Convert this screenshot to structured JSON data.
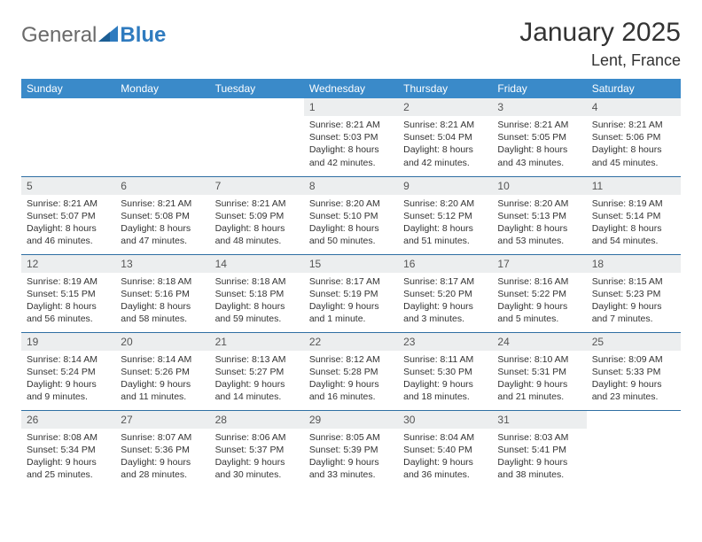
{
  "logo": {
    "text1": "General",
    "text2": "Blue"
  },
  "title": "January 2025",
  "location": "Lent, France",
  "colors": {
    "header_bg": "#3a8ac9",
    "header_text": "#ffffff",
    "daynum_bg": "#eceeef",
    "row_border": "#2f6fa3",
    "text": "#333333",
    "logo_blue": "#2f7bbf",
    "logo_gray": "#6a6a6a",
    "background": "#ffffff"
  },
  "weekdays": [
    "Sunday",
    "Monday",
    "Tuesday",
    "Wednesday",
    "Thursday",
    "Friday",
    "Saturday"
  ],
  "weeks": [
    [
      {
        "n": "",
        "empty": true
      },
      {
        "n": "",
        "empty": true
      },
      {
        "n": "",
        "empty": true
      },
      {
        "n": "1",
        "sunrise": "8:21 AM",
        "sunset": "5:03 PM",
        "dl1": "8 hours",
        "dl2": "42 minutes"
      },
      {
        "n": "2",
        "sunrise": "8:21 AM",
        "sunset": "5:04 PM",
        "dl1": "8 hours",
        "dl2": "42 minutes"
      },
      {
        "n": "3",
        "sunrise": "8:21 AM",
        "sunset": "5:05 PM",
        "dl1": "8 hours",
        "dl2": "43 minutes"
      },
      {
        "n": "4",
        "sunrise": "8:21 AM",
        "sunset": "5:06 PM",
        "dl1": "8 hours",
        "dl2": "45 minutes"
      }
    ],
    [
      {
        "n": "5",
        "sunrise": "8:21 AM",
        "sunset": "5:07 PM",
        "dl1": "8 hours",
        "dl2": "46 minutes"
      },
      {
        "n": "6",
        "sunrise": "8:21 AM",
        "sunset": "5:08 PM",
        "dl1": "8 hours",
        "dl2": "47 minutes"
      },
      {
        "n": "7",
        "sunrise": "8:21 AM",
        "sunset": "5:09 PM",
        "dl1": "8 hours",
        "dl2": "48 minutes"
      },
      {
        "n": "8",
        "sunrise": "8:20 AM",
        "sunset": "5:10 PM",
        "dl1": "8 hours",
        "dl2": "50 minutes"
      },
      {
        "n": "9",
        "sunrise": "8:20 AM",
        "sunset": "5:12 PM",
        "dl1": "8 hours",
        "dl2": "51 minutes"
      },
      {
        "n": "10",
        "sunrise": "8:20 AM",
        "sunset": "5:13 PM",
        "dl1": "8 hours",
        "dl2": "53 minutes"
      },
      {
        "n": "11",
        "sunrise": "8:19 AM",
        "sunset": "5:14 PM",
        "dl1": "8 hours",
        "dl2": "54 minutes"
      }
    ],
    [
      {
        "n": "12",
        "sunrise": "8:19 AM",
        "sunset": "5:15 PM",
        "dl1": "8 hours",
        "dl2": "56 minutes"
      },
      {
        "n": "13",
        "sunrise": "8:18 AM",
        "sunset": "5:16 PM",
        "dl1": "8 hours",
        "dl2": "58 minutes"
      },
      {
        "n": "14",
        "sunrise": "8:18 AM",
        "sunset": "5:18 PM",
        "dl1": "8 hours",
        "dl2": "59 minutes"
      },
      {
        "n": "15",
        "sunrise": "8:17 AM",
        "sunset": "5:19 PM",
        "dl1": "9 hours",
        "dl2": "1 minute"
      },
      {
        "n": "16",
        "sunrise": "8:17 AM",
        "sunset": "5:20 PM",
        "dl1": "9 hours",
        "dl2": "3 minutes"
      },
      {
        "n": "17",
        "sunrise": "8:16 AM",
        "sunset": "5:22 PM",
        "dl1": "9 hours",
        "dl2": "5 minutes"
      },
      {
        "n": "18",
        "sunrise": "8:15 AM",
        "sunset": "5:23 PM",
        "dl1": "9 hours",
        "dl2": "7 minutes"
      }
    ],
    [
      {
        "n": "19",
        "sunrise": "8:14 AM",
        "sunset": "5:24 PM",
        "dl1": "9 hours",
        "dl2": "9 minutes"
      },
      {
        "n": "20",
        "sunrise": "8:14 AM",
        "sunset": "5:26 PM",
        "dl1": "9 hours",
        "dl2": "11 minutes"
      },
      {
        "n": "21",
        "sunrise": "8:13 AM",
        "sunset": "5:27 PM",
        "dl1": "9 hours",
        "dl2": "14 minutes"
      },
      {
        "n": "22",
        "sunrise": "8:12 AM",
        "sunset": "5:28 PM",
        "dl1": "9 hours",
        "dl2": "16 minutes"
      },
      {
        "n": "23",
        "sunrise": "8:11 AM",
        "sunset": "5:30 PM",
        "dl1": "9 hours",
        "dl2": "18 minutes"
      },
      {
        "n": "24",
        "sunrise": "8:10 AM",
        "sunset": "5:31 PM",
        "dl1": "9 hours",
        "dl2": "21 minutes"
      },
      {
        "n": "25",
        "sunrise": "8:09 AM",
        "sunset": "5:33 PM",
        "dl1": "9 hours",
        "dl2": "23 minutes"
      }
    ],
    [
      {
        "n": "26",
        "sunrise": "8:08 AM",
        "sunset": "5:34 PM",
        "dl1": "9 hours",
        "dl2": "25 minutes"
      },
      {
        "n": "27",
        "sunrise": "8:07 AM",
        "sunset": "5:36 PM",
        "dl1": "9 hours",
        "dl2": "28 minutes"
      },
      {
        "n": "28",
        "sunrise": "8:06 AM",
        "sunset": "5:37 PM",
        "dl1": "9 hours",
        "dl2": "30 minutes"
      },
      {
        "n": "29",
        "sunrise": "8:05 AM",
        "sunset": "5:39 PM",
        "dl1": "9 hours",
        "dl2": "33 minutes"
      },
      {
        "n": "30",
        "sunrise": "8:04 AM",
        "sunset": "5:40 PM",
        "dl1": "9 hours",
        "dl2": "36 minutes"
      },
      {
        "n": "31",
        "sunrise": "8:03 AM",
        "sunset": "5:41 PM",
        "dl1": "9 hours",
        "dl2": "38 minutes"
      },
      {
        "n": "",
        "empty": true
      }
    ]
  ],
  "labels": {
    "sunrise": "Sunrise:",
    "sunset": "Sunset:",
    "daylight": "Daylight:",
    "and": "and"
  }
}
